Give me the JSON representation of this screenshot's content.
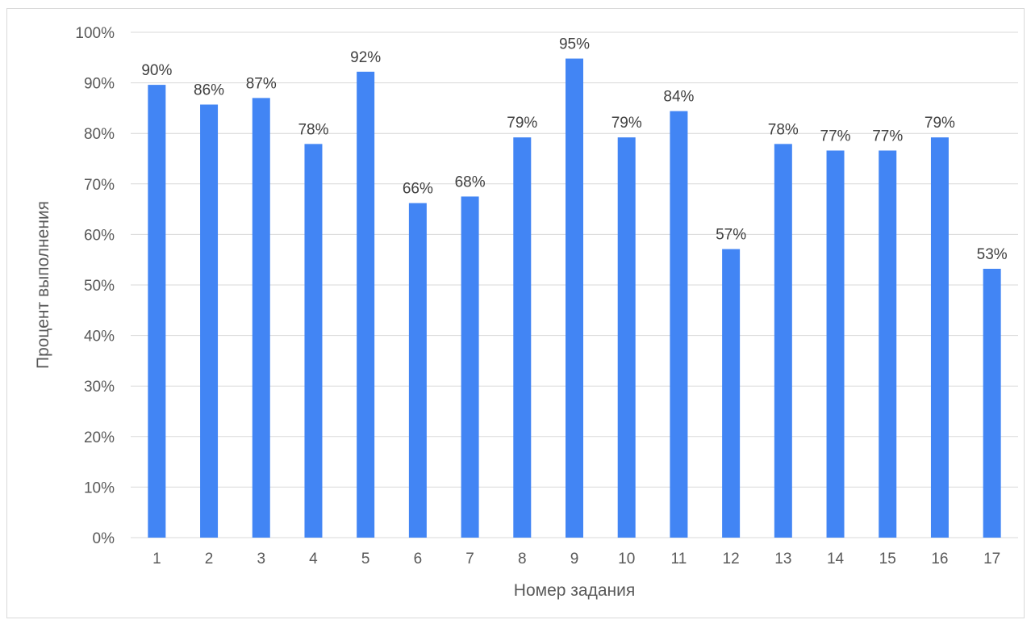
{
  "chart_data": {
    "type": "bar",
    "categories": [
      "1",
      "2",
      "3",
      "4",
      "5",
      "6",
      "7",
      "8",
      "9",
      "10",
      "11",
      "12",
      "13",
      "14",
      "15",
      "16",
      "17"
    ],
    "values": [
      89.6,
      85.7,
      87.0,
      77.9,
      92.2,
      66.2,
      67.5,
      79.2,
      94.8,
      79.2,
      84.4,
      57.1,
      77.9,
      76.6,
      76.6,
      79.2,
      53.2
    ],
    "data_labels": [
      "90%",
      "86%",
      "87%",
      "78%",
      "92%",
      "66%",
      "68%",
      "79%",
      "95%",
      "79%",
      "84%",
      "57%",
      "78%",
      "77%",
      "77%",
      "79%",
      "53%"
    ],
    "title": "",
    "xlabel": "Номер задания",
    "ylabel": "Процент выполнения",
    "ylim": [
      0,
      100
    ],
    "yticks": [
      "0%",
      "10%",
      "20%",
      "30%",
      "40%",
      "50%",
      "60%",
      "70%",
      "80%",
      "90%",
      "100%"
    ],
    "grid": true,
    "bar_color": "#4285F4",
    "grid_color": "#d9d9d9"
  }
}
